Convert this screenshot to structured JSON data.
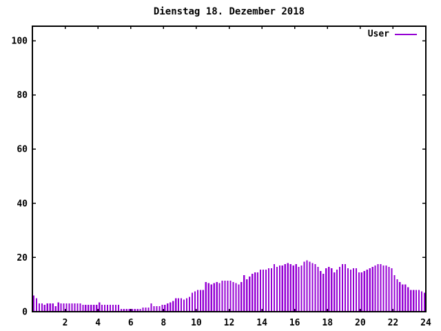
{
  "title": "Dienstag 18. Dezember 2018",
  "legend": {
    "label": "User",
    "color": "#9400d3"
  },
  "chart_data": {
    "type": "bar",
    "title": "Dienstag 18. Dezember 2018",
    "series_name": "User",
    "xlabel": "",
    "ylabel": "",
    "xlim": [
      0,
      24
    ],
    "ylim": [
      0,
      105
    ],
    "x_ticks": [
      2,
      4,
      6,
      8,
      10,
      12,
      14,
      16,
      18,
      20,
      22,
      24
    ],
    "y_ticks": [
      0,
      20,
      40,
      60,
      80,
      100
    ],
    "interval_minutes": 10,
    "bar_color": "#9400d3",
    "frame_color": "#000000",
    "grid": false,
    "legend_position": "top-right-inside",
    "values": [
      6,
      5,
      3,
      3,
      2.5,
      3,
      3,
      3,
      2,
      3.5,
      3,
      3,
      3,
      3,
      3,
      3,
      3,
      3,
      2.5,
      2.5,
      2.5,
      2.5,
      2.5,
      2.5,
      3.5,
      2.5,
      2.5,
      2.5,
      2.5,
      2.5,
      2.5,
      2.5,
      1,
      1,
      1,
      1,
      1,
      1,
      1,
      1,
      1.5,
      1.5,
      1.5,
      3,
      2,
      2,
      2,
      2.5,
      2.5,
      3,
      3.5,
      4,
      5,
      5,
      5,
      4.5,
      5,
      5.5,
      7,
      7.5,
      8,
      8,
      8,
      11,
      10.5,
      10,
      10.5,
      11,
      10.5,
      11.5,
      11.5,
      11.5,
      11.5,
      11,
      10.5,
      10,
      11,
      13.5,
      12,
      13,
      14,
      14.5,
      14.5,
      15.5,
      15.5,
      15.5,
      16,
      16,
      17.5,
      16.5,
      17,
      17,
      17.5,
      18,
      17.5,
      17,
      17.5,
      16.5,
      17,
      18.5,
      19,
      18.5,
      18,
      17.5,
      16.5,
      15,
      14,
      16,
      16.5,
      16,
      14.5,
      15.5,
      16.5,
      17.5,
      17.5,
      16,
      15.5,
      16,
      16,
      14.5,
      14.5,
      15,
      15.5,
      16,
      16.5,
      17,
      17.5,
      17.5,
      17,
      17,
      16.5,
      16,
      13.5,
      12,
      11,
      10,
      10,
      9,
      8,
      8,
      8,
      8,
      7.5,
      7
    ]
  }
}
